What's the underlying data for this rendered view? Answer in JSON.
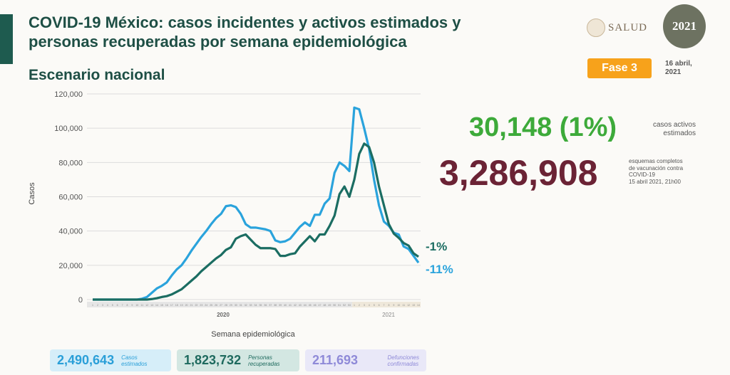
{
  "header": {
    "title_line1": "COVID-19 México: casos incidentes y activos estimados y",
    "title_line2": "personas recuperadas por semana epidemiológica",
    "subtitle": "Escenario nacional",
    "logo_salud": "SALUD",
    "logo_year": "2021",
    "phase": "Fase 3",
    "date_line1": "16 abril,",
    "date_line2": "2021"
  },
  "stats": {
    "active_value": "30,148 (1%)",
    "active_label_1": "casos activos",
    "active_label_2": "estimados",
    "vaccine_value": "3,286,908",
    "vaccine_label_1": "esquemas completos",
    "vaccine_label_2": "de vacunación contra",
    "vaccine_label_3": "COVID-19",
    "vaccine_label_4": "15 abril 2021, 21h00"
  },
  "summary": [
    {
      "value": "2,490,643",
      "label1": "Casos",
      "label2": "estimados",
      "color": "#2a9fd8",
      "bg": "#d6eef9"
    },
    {
      "value": "1,823,732",
      "label1": "Personas",
      "label2": "recuperadas",
      "color": "#1e6a5e",
      "bg": "#d3e7e2"
    },
    {
      "value": "211,693",
      "label1": "Defunciones",
      "label2": "confirmadas",
      "color": "#8f8ad8",
      "bg": "#e9e8f8"
    }
  ],
  "chart_data": {
    "type": "line",
    "xlabel": "Semana epidemiológica",
    "ylabel": "Casos",
    "ylim": [
      0,
      120000
    ],
    "yticks": [
      "0",
      "20,000",
      "40,000",
      "60,000",
      "80,000",
      "100,000",
      "120,000"
    ],
    "year_labels": [
      "2020",
      "2021"
    ],
    "weeks_2020": 53,
    "weeks_2021": 14,
    "grid": true,
    "series": [
      {
        "color": "#2aa3dc",
        "end_label": "-11%",
        "values": [
          0,
          0,
          0,
          0,
          0,
          0,
          0,
          0,
          0,
          0,
          500,
          1500,
          4000,
          6500,
          8000,
          10000,
          14000,
          17500,
          20000,
          24000,
          28500,
          32500,
          36500,
          40000,
          44000,
          47500,
          50000,
          54500,
          55000,
          54000,
          50000,
          44000,
          42000,
          42000,
          41500,
          41000,
          40000,
          34500,
          33500,
          34000,
          35500,
          39000,
          42500,
          45000,
          43000,
          49500,
          49500,
          56000,
          59000,
          74000,
          80000,
          78000,
          75000,
          112000,
          111000,
          100000,
          88000,
          70000,
          55000,
          45500,
          43000,
          39000,
          38000,
          31000,
          29500,
          25500,
          21500
        ]
      },
      {
        "color": "#1b6d62",
        "end_label": "-1%",
        "values": [
          0,
          0,
          0,
          0,
          0,
          0,
          0,
          0,
          0,
          0,
          0,
          0,
          300,
          800,
          1500,
          2000,
          3000,
          4500,
          6000,
          8500,
          11000,
          13500,
          16500,
          19000,
          21500,
          24000,
          26000,
          29000,
          30500,
          35500,
          37000,
          38000,
          35000,
          32000,
          30000,
          30000,
          30000,
          29500,
          25500,
          25500,
          26500,
          27000,
          31000,
          34000,
          37000,
          34000,
          38000,
          38000,
          43000,
          49000,
          61500,
          66000,
          60000,
          70000,
          85000,
          91000,
          89000,
          80000,
          66000,
          55000,
          44000,
          38500,
          36000,
          33000,
          31500,
          27000,
          25000
        ]
      }
    ]
  }
}
